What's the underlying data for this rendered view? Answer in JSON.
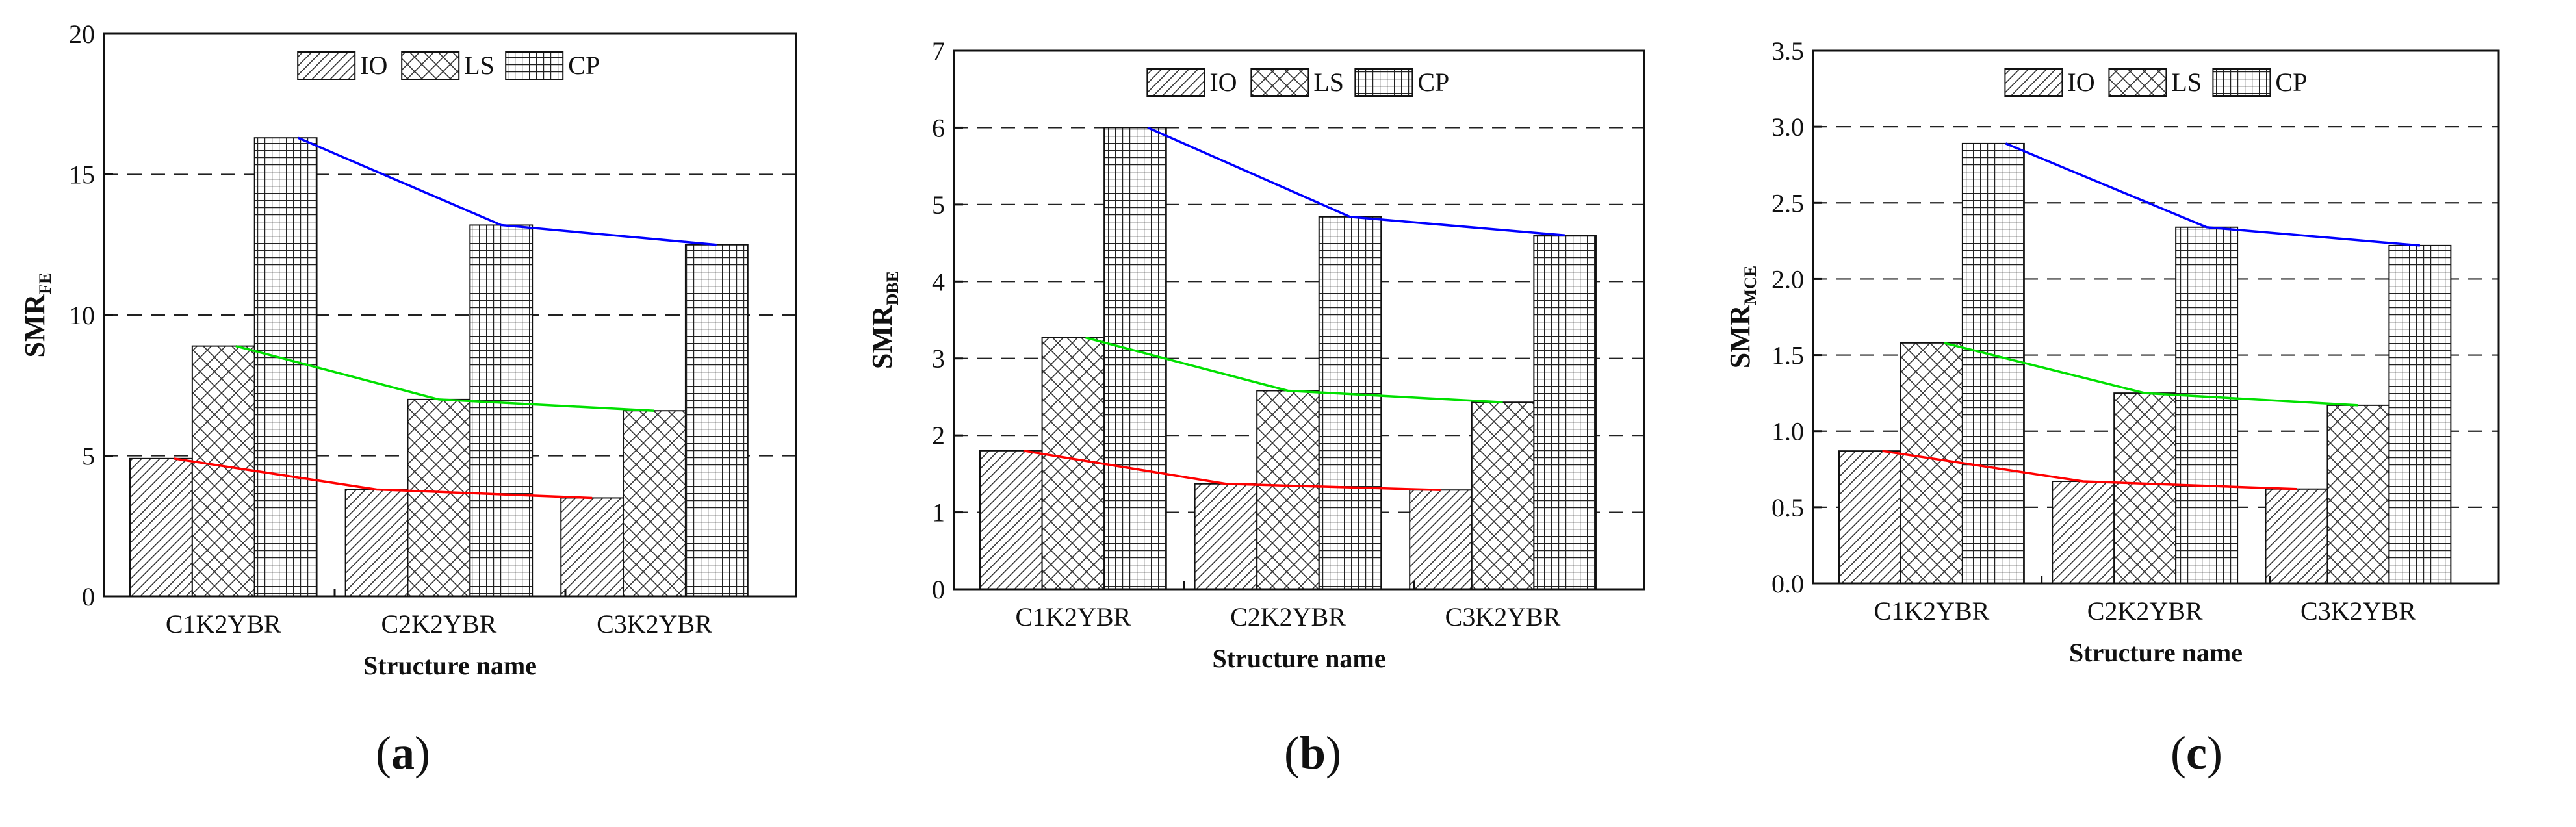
{
  "chart_data": [
    {
      "type": "bar",
      "panel_label": "a",
      "ylabel": "SMR",
      "ylabel_sub": "FE",
      "xlabel": "Structure name",
      "categories": [
        "C1K2YBR",
        "C2K2YBR",
        "C3K2YBR"
      ],
      "ylim": [
        0,
        20
      ],
      "yticks": [
        0,
        5,
        10,
        15,
        20
      ],
      "ytick_labels": [
        "0",
        "5",
        "10",
        "15",
        "20"
      ],
      "gridlines": [
        5,
        10,
        15
      ],
      "legend": [
        "IO",
        "LS",
        "CP"
      ],
      "series": [
        {
          "name": "IO",
          "values": [
            4.9,
            3.8,
            3.5
          ],
          "trend_color": "#ff0000"
        },
        {
          "name": "LS",
          "values": [
            8.9,
            7.0,
            6.6
          ],
          "trend_color": "#00e000"
        },
        {
          "name": "CP",
          "values": [
            16.3,
            13.2,
            12.5
          ],
          "trend_color": "#0000ff"
        }
      ]
    },
    {
      "type": "bar",
      "panel_label": "b",
      "ylabel": "SMR",
      "ylabel_sub": "DBE",
      "xlabel": "Structure name",
      "categories": [
        "C1K2YBR",
        "C2K2YBR",
        "C3K2YBR"
      ],
      "ylim": [
        0,
        7
      ],
      "yticks": [
        0,
        1,
        2,
        3,
        4,
        5,
        6,
        7
      ],
      "ytick_labels": [
        "0",
        "1",
        "2",
        "3",
        "4",
        "5",
        "6",
        "7"
      ],
      "gridlines": [
        1,
        2,
        3,
        4,
        5,
        6
      ],
      "legend": [
        "IO",
        "LS",
        "CP"
      ],
      "series": [
        {
          "name": "IO",
          "values": [
            1.8,
            1.37,
            1.29
          ],
          "trend_color": "#ff0000"
        },
        {
          "name": "LS",
          "values": [
            3.27,
            2.58,
            2.43
          ],
          "trend_color": "#00e000"
        },
        {
          "name": "CP",
          "values": [
            6.0,
            4.84,
            4.6
          ],
          "trend_color": "#0000ff"
        }
      ]
    },
    {
      "type": "bar",
      "panel_label": "c",
      "ylabel": "SMR",
      "ylabel_sub": "MCE",
      "xlabel": "Structure name",
      "categories": [
        "C1K2YBR",
        "C2K2YBR",
        "C3K2YBR"
      ],
      "ylim": [
        0,
        3.5
      ],
      "yticks": [
        0,
        0.5,
        1,
        1.5,
        2,
        2.5,
        3,
        3.5
      ],
      "ytick_labels": [
        "0.0",
        "0.5",
        "1.0",
        "1.5",
        "2.0",
        "2.5",
        "3.0",
        "3.5"
      ],
      "gridlines": [
        0.5,
        1,
        1.5,
        2,
        2.5,
        3
      ],
      "legend": [
        "IO",
        "LS",
        "CP"
      ],
      "series": [
        {
          "name": "IO",
          "values": [
            0.87,
            0.67,
            0.62
          ],
          "trend_color": "#ff0000"
        },
        {
          "name": "LS",
          "values": [
            1.58,
            1.25,
            1.17
          ],
          "trend_color": "#00e000"
        },
        {
          "name": "CP",
          "values": [
            2.89,
            2.34,
            2.22
          ],
          "trend_color": "#0000ff"
        }
      ]
    }
  ]
}
